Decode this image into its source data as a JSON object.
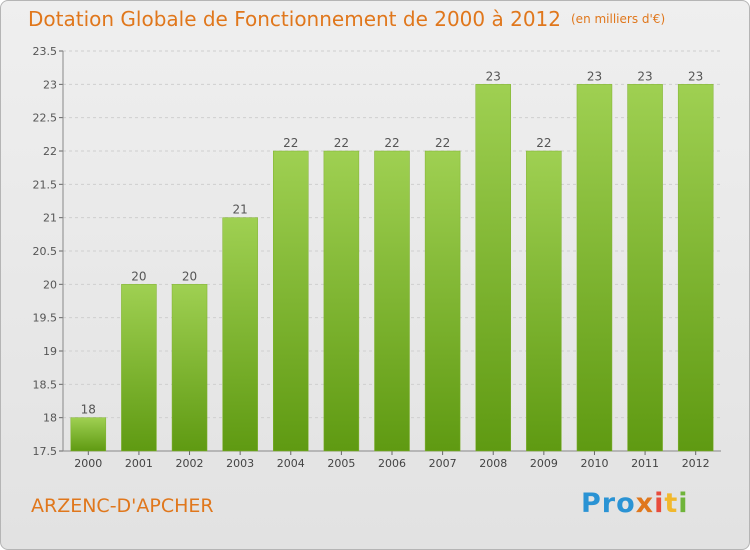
{
  "header": {
    "title": "Dotation Globale de Fonctionnement de 2000 à 2012",
    "unit": "(en milliers d'€)"
  },
  "footer": {
    "commune": "ARZENC-D'APCHER",
    "logo_parts": [
      "Pro",
      "x",
      "i",
      "t",
      "i"
    ]
  },
  "colors": {
    "title": "#e0771c",
    "bar_top": "#9fd052",
    "bar_bottom": "#5f9a12",
    "grid": "#cfcfcf"
  },
  "chart_data": {
    "type": "bar",
    "title": "Dotation Globale de Fonctionnement de 2000 à 2012",
    "xlabel": "",
    "ylabel": "",
    "ylim": [
      17.5,
      23.5
    ],
    "yticks": [
      "17.5",
      "18",
      "18.5",
      "19",
      "19.5",
      "20",
      "20.5",
      "21",
      "21.5",
      "22",
      "22.5",
      "23",
      "23.5"
    ],
    "grid": true,
    "categories": [
      "2000",
      "2001",
      "2002",
      "2003",
      "2004",
      "2005",
      "2006",
      "2007",
      "2008",
      "2009",
      "2010",
      "2011",
      "2012"
    ],
    "values": [
      18,
      20,
      20,
      21,
      22,
      22,
      22,
      22,
      23,
      22,
      23,
      23,
      23
    ],
    "labels": [
      "18",
      "20",
      "20",
      "21",
      "22",
      "22",
      "22",
      "22",
      "23",
      "22",
      "23",
      "23",
      "23"
    ]
  }
}
